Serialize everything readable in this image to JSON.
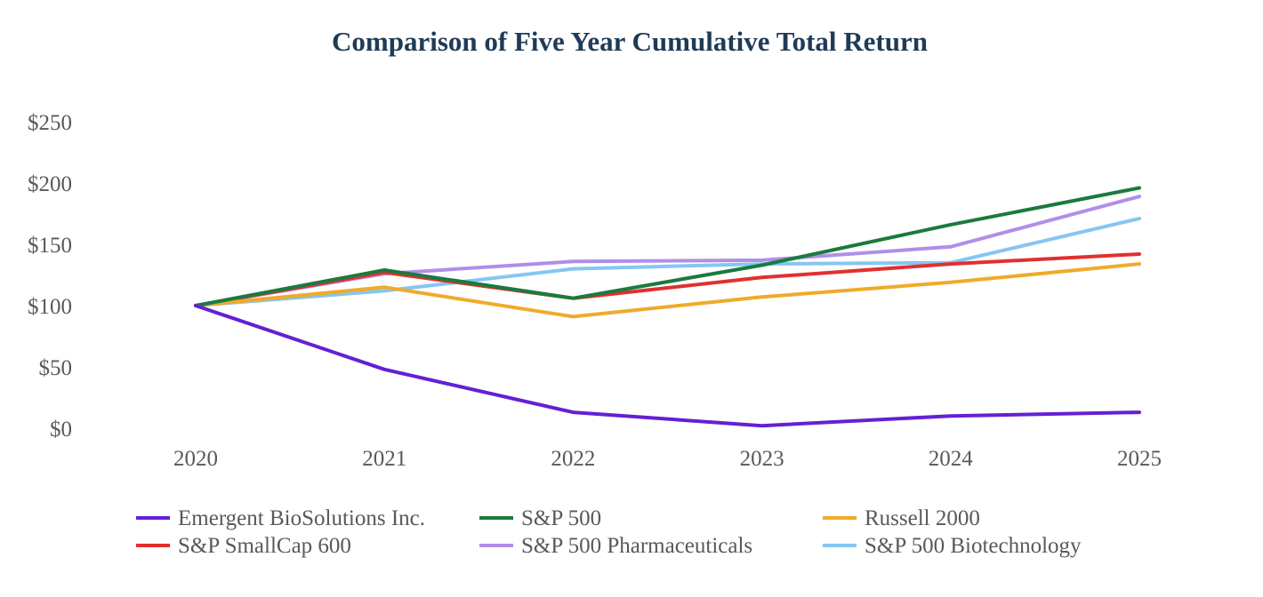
{
  "chart_data": {
    "type": "line",
    "title": "Comparison of Five Year Cumulative Total Return",
    "title_color": "#1f3b57",
    "xlabel": "",
    "ylabel": "",
    "x": [
      "2020",
      "2021",
      "2022",
      "2023",
      "2024",
      "2025"
    ],
    "y_ticks": [
      0,
      50,
      100,
      150,
      200,
      250
    ],
    "y_tick_labels": [
      "$0",
      "$50",
      "$100",
      "$150",
      "$200",
      "$250"
    ],
    "ylim": [
      0,
      250
    ],
    "grid": false,
    "legend_position": "bottom",
    "series": [
      {
        "name": "Emergent BioSolutions Inc.",
        "color": "#6420d4",
        "values": [
          100,
          48,
          13,
          2,
          10,
          13
        ]
      },
      {
        "name": "S&P 500",
        "color": "#1b7a3e",
        "values": [
          100,
          129,
          106,
          133,
          166,
          196
        ]
      },
      {
        "name": "Russell 2000",
        "color": "#f0aa2a",
        "values": [
          100,
          115,
          91,
          107,
          119,
          134
        ]
      },
      {
        "name": "S&P SmallCap 600",
        "color": "#e0302e",
        "values": [
          100,
          127,
          106,
          123,
          134,
          142
        ]
      },
      {
        "name": "S&P 500 Pharmaceuticals",
        "color": "#b08ee8",
        "values": [
          100,
          126,
          136,
          137,
          148,
          189
        ]
      },
      {
        "name": "S&P 500 Biotechnology",
        "color": "#85c6f2",
        "values": [
          100,
          112,
          130,
          134,
          135,
          171
        ]
      }
    ]
  }
}
